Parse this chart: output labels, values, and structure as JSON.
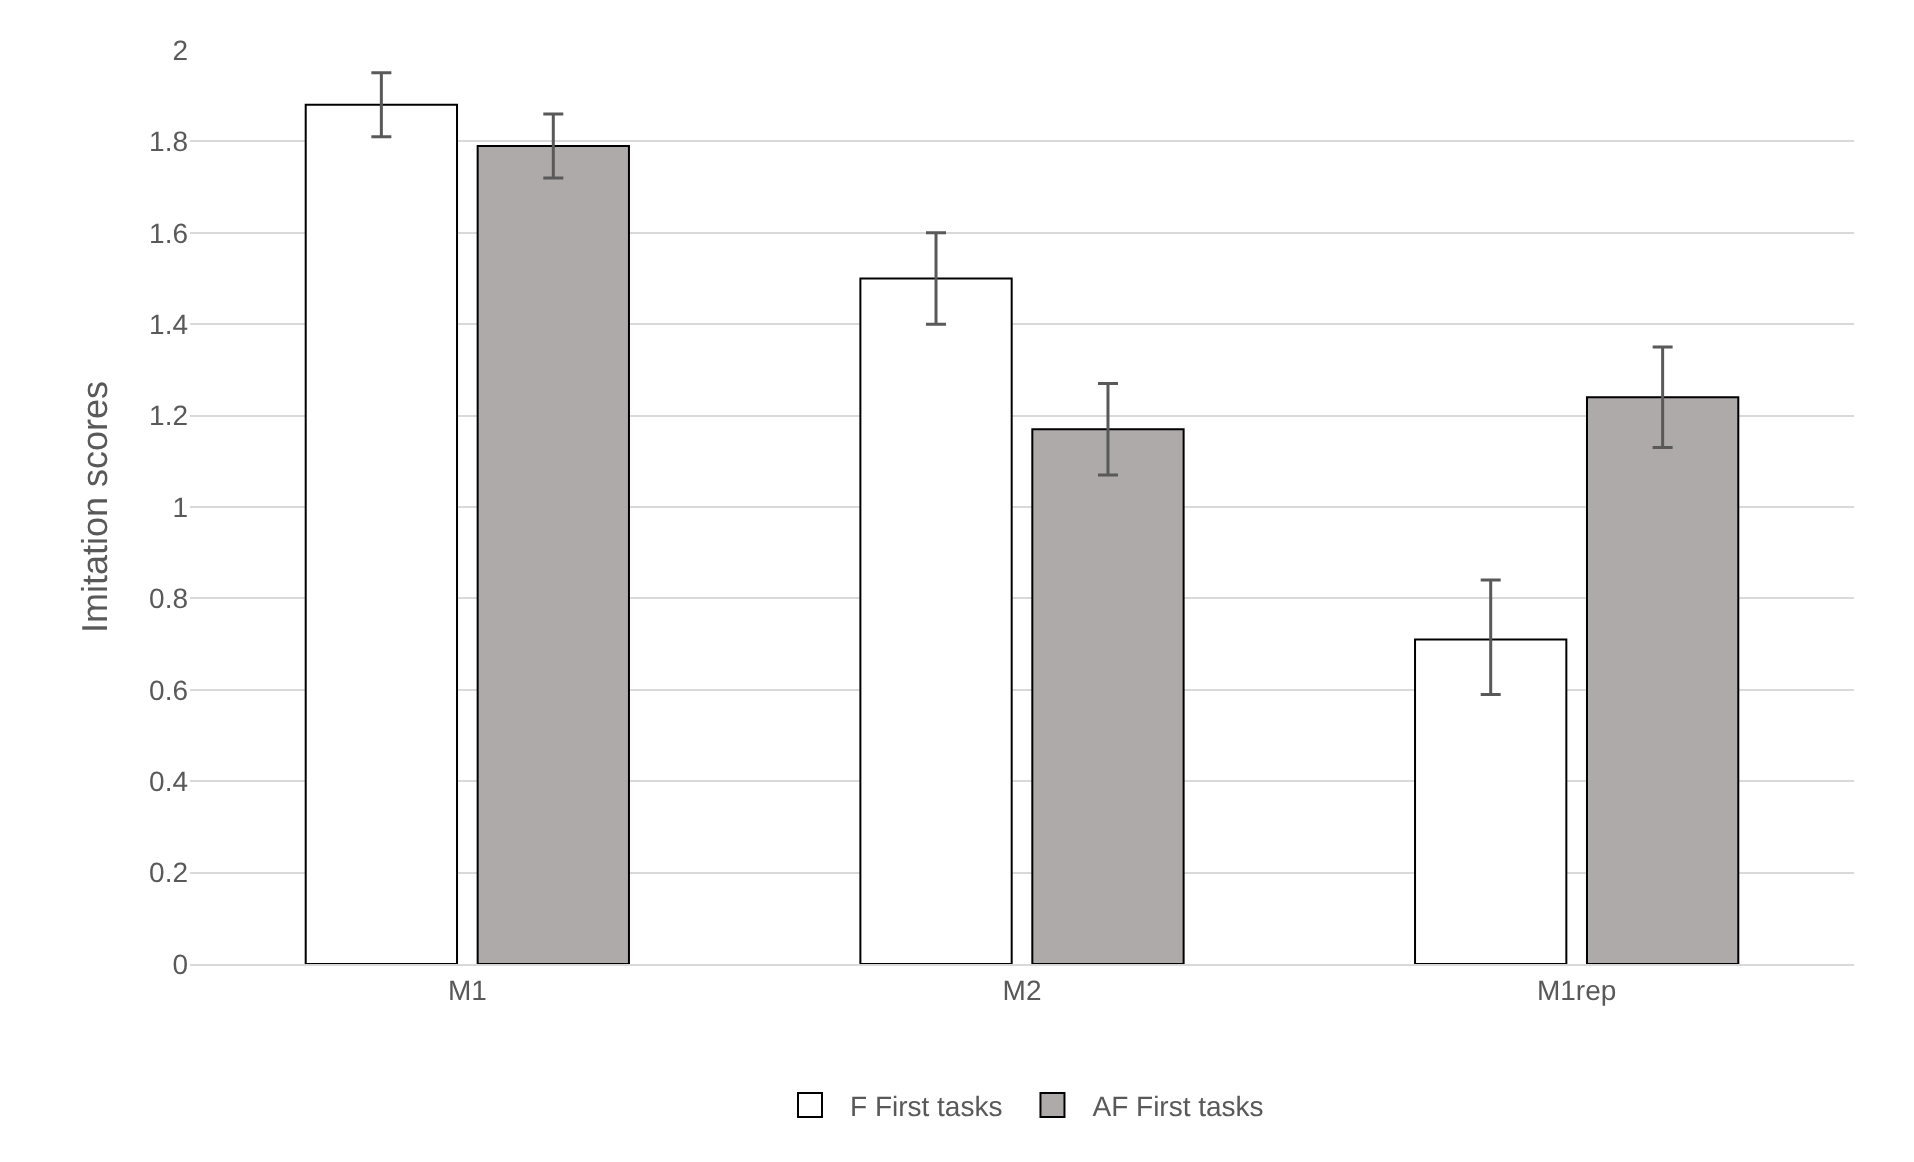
{
  "chart_data": {
    "type": "bar",
    "ylabel": "Imitation scores",
    "categories": [
      "M1",
      "M2",
      "M1rep"
    ],
    "series": [
      {
        "name": "F First tasks",
        "color": "#ffffff",
        "values": [
          1.88,
          1.5,
          0.71
        ],
        "errors": [
          [
            1.81,
            1.95
          ],
          [
            1.4,
            1.6
          ],
          [
            0.59,
            0.84
          ]
        ]
      },
      {
        "name": "AF First tasks",
        "color": "#aeaaaa",
        "values": [
          1.79,
          1.17,
          1.24
        ],
        "errors": [
          [
            1.72,
            1.86
          ],
          [
            1.07,
            1.27
          ],
          [
            1.13,
            1.35
          ]
        ]
      }
    ],
    "ylim": [
      0,
      2
    ],
    "yticks": [
      0,
      0.2,
      0.4,
      0.6,
      0.8,
      1,
      1.2,
      1.4,
      1.6,
      1.8,
      2
    ],
    "grid": "y",
    "legend": "bottom"
  }
}
